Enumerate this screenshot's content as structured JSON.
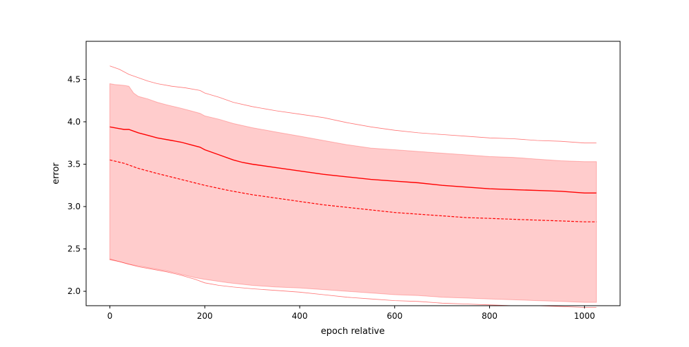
{
  "chart_data": {
    "type": "line",
    "title": "",
    "xlabel": "epoch relative",
    "ylabel": "error",
    "xlim": [
      -50,
      1075
    ],
    "ylim": [
      1.83,
      4.95
    ],
    "xticks": [
      0,
      200,
      400,
      600,
      800,
      1000
    ],
    "yticks": [
      2.0,
      2.5,
      3.0,
      3.5,
      4.0,
      4.5
    ],
    "xtick_labels": [
      "0",
      "200",
      "400",
      "600",
      "800",
      "1000"
    ],
    "ytick_labels": [
      "2.0",
      "2.5",
      "3.0",
      "3.5",
      "4.0",
      "4.5"
    ],
    "grid": false,
    "legend": "none",
    "color": "#ff0000",
    "band_fill": "#ffcccc",
    "band_upper": {
      "x": [
        0,
        10,
        30,
        40,
        50,
        60,
        80,
        100,
        120,
        150,
        170,
        190,
        200,
        230,
        260,
        300,
        350,
        400,
        450,
        500,
        550,
        600,
        650,
        700,
        750,
        800,
        850,
        900,
        950,
        1000,
        1025
      ],
      "y": [
        4.45,
        4.44,
        4.43,
        4.42,
        4.34,
        4.3,
        4.27,
        4.23,
        4.2,
        4.16,
        4.13,
        4.1,
        4.07,
        4.03,
        3.98,
        3.93,
        3.88,
        3.83,
        3.78,
        3.73,
        3.69,
        3.67,
        3.65,
        3.63,
        3.61,
        3.59,
        3.58,
        3.56,
        3.54,
        3.53,
        3.53
      ]
    },
    "band_lower": {
      "x": [
        0,
        20,
        40,
        60,
        80,
        100,
        120,
        150,
        180,
        200,
        250,
        300,
        350,
        400,
        450,
        500,
        550,
        600,
        650,
        700,
        750,
        800,
        850,
        900,
        950,
        1000,
        1025
      ],
      "y": [
        2.37,
        2.35,
        2.32,
        2.3,
        2.28,
        2.26,
        2.24,
        2.2,
        2.16,
        2.14,
        2.1,
        2.07,
        2.05,
        2.04,
        2.02,
        2.0,
        1.98,
        1.96,
        1.95,
        1.93,
        1.92,
        1.91,
        1.9,
        1.89,
        1.88,
        1.87,
        1.87
      ]
    },
    "series": [
      {
        "style": "solid",
        "x": [
          0,
          20,
          30,
          40,
          60,
          80,
          100,
          130,
          150,
          170,
          190,
          200,
          230,
          260,
          280,
          300,
          350,
          400,
          450,
          500,
          550,
          600,
          650,
          700,
          750,
          800,
          850,
          900,
          950,
          1000,
          1025
        ],
        "y": [
          3.94,
          3.92,
          3.91,
          3.91,
          3.87,
          3.84,
          3.81,
          3.78,
          3.76,
          3.73,
          3.7,
          3.67,
          3.61,
          3.55,
          3.52,
          3.5,
          3.46,
          3.42,
          3.38,
          3.35,
          3.32,
          3.3,
          3.28,
          3.25,
          3.23,
          3.21,
          3.2,
          3.19,
          3.18,
          3.16,
          3.16
        ]
      },
      {
        "style": "dashed",
        "x": [
          0,
          30,
          60,
          100,
          150,
          200,
          250,
          300,
          350,
          400,
          450,
          500,
          550,
          600,
          650,
          700,
          750,
          800,
          850,
          900,
          950,
          1000,
          1025
        ],
        "y": [
          3.55,
          3.51,
          3.45,
          3.39,
          3.32,
          3.25,
          3.19,
          3.14,
          3.1,
          3.06,
          3.02,
          2.99,
          2.96,
          2.93,
          2.91,
          2.89,
          2.87,
          2.86,
          2.85,
          2.84,
          2.83,
          2.82,
          2.82
        ]
      },
      {
        "style": "thin",
        "x": [
          0,
          20,
          40,
          60,
          80,
          100,
          130,
          160,
          190,
          200,
          230,
          260,
          300,
          350,
          400,
          450,
          500,
          550,
          600,
          650,
          700,
          750,
          800,
          850,
          900,
          950,
          1000,
          1025
        ],
        "y": [
          4.66,
          4.62,
          4.56,
          4.52,
          4.48,
          4.45,
          4.42,
          4.4,
          4.37,
          4.34,
          4.29,
          4.23,
          4.18,
          4.13,
          4.09,
          4.05,
          3.99,
          3.94,
          3.9,
          3.87,
          3.85,
          3.83,
          3.81,
          3.8,
          3.78,
          3.77,
          3.75,
          3.75
        ]
      },
      {
        "style": "thin",
        "x": [
          0,
          20,
          40,
          60,
          80,
          100,
          120,
          150,
          180,
          200,
          230,
          260,
          300,
          350,
          400,
          450,
          500,
          550,
          600,
          650,
          700,
          750,
          800,
          850,
          900,
          950,
          1000,
          1025
        ],
        "y": [
          2.38,
          2.35,
          2.32,
          2.29,
          2.27,
          2.25,
          2.23,
          2.19,
          2.14,
          2.1,
          2.07,
          2.05,
          2.03,
          2.01,
          1.99,
          1.96,
          1.93,
          1.91,
          1.89,
          1.88,
          1.86,
          1.85,
          1.84,
          1.83,
          1.83,
          1.82,
          1.81,
          1.81
        ]
      }
    ]
  }
}
